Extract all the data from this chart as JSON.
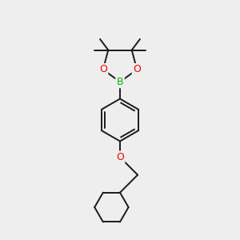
{
  "bg_color": "#eeeeee",
  "bond_color": "#1a1a1a",
  "bond_width": 1.4,
  "atom_colors": {
    "B": "#00bb00",
    "O": "#ee0000",
    "C": "#1a1a1a"
  },
  "figsize": [
    3.0,
    3.0
  ],
  "dpi": 100
}
